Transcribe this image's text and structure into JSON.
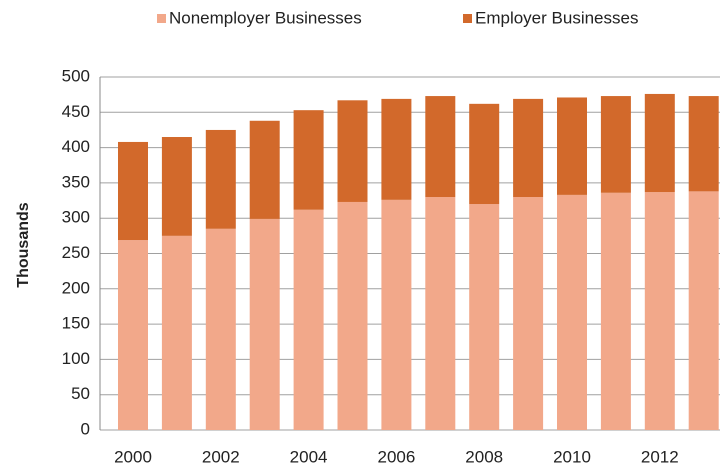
{
  "chart_data": {
    "type": "bar",
    "stacked": true,
    "y_label": "Thousands",
    "categories": [
      "2000",
      null,
      "2002",
      null,
      "2004",
      null,
      "2006",
      null,
      "2008",
      null,
      "2010",
      null,
      "2012",
      null
    ],
    "series": [
      {
        "name": "Nonemployer Businesses",
        "color": "#f2a88a",
        "values": [
          269,
          275,
          285,
          299,
          312,
          323,
          326,
          330,
          320,
          330,
          333,
          336,
          337,
          338
        ]
      },
      {
        "name": "Employer Businesses",
        "color": "#d2692b",
        "values": [
          139,
          140,
          140,
          139,
          141,
          144,
          143,
          143,
          142,
          139,
          138,
          137,
          139,
          135
        ]
      }
    ],
    "ylim": [
      0,
      500
    ],
    "yticks": [
      0,
      50,
      100,
      150,
      200,
      250,
      300,
      350,
      400,
      450,
      500
    ],
    "grid": true,
    "legend": "top"
  }
}
